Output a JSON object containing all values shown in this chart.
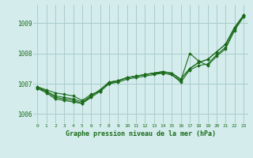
{
  "title": "Graphe pression niveau de la mer (hPa)",
  "background_color": "#d4ecec",
  "grid_color": "#aacccc",
  "line_color": "#1a6b1a",
  "marker_color": "#1a6b1a",
  "xlim": [
    -0.5,
    23.5
  ],
  "ylim": [
    1005.7,
    1009.6
  ],
  "yticks": [
    1006,
    1007,
    1008,
    1009
  ],
  "xtick_labels": [
    "0",
    "1",
    "2",
    "3",
    "4",
    "5",
    "6",
    "7",
    "8",
    "9",
    "10",
    "11",
    "12",
    "13",
    "14",
    "15",
    "16",
    "17",
    "18",
    "19",
    "20",
    "21",
    "22",
    "23"
  ],
  "series": [
    [
      1006.9,
      1006.8,
      1006.7,
      1006.65,
      1006.6,
      1006.45,
      1006.65,
      1006.75,
      1007.0,
      1007.05,
      1007.15,
      1007.2,
      1007.25,
      1007.3,
      1007.35,
      1007.3,
      1007.05,
      1007.45,
      1007.6,
      1007.65,
      1007.95,
      1008.2,
      1008.8,
      1009.2
    ],
    [
      1006.9,
      1006.75,
      1006.6,
      1006.55,
      1006.5,
      1006.4,
      1006.6,
      1006.8,
      1007.05,
      1007.1,
      1007.2,
      1007.25,
      1007.3,
      1007.35,
      1007.4,
      1007.35,
      1007.15,
      1007.5,
      1007.7,
      1007.8,
      1008.05,
      1008.3,
      1008.85,
      1009.25
    ],
    [
      1006.85,
      1006.75,
      1006.55,
      1006.5,
      1006.45,
      1006.35,
      1006.55,
      1006.75,
      1007.0,
      1007.1,
      1007.2,
      1007.25,
      1007.3,
      1007.35,
      1007.35,
      1007.3,
      1007.1,
      1008.0,
      1007.75,
      1007.6,
      1007.9,
      1008.15,
      1008.75,
      1009.2
    ],
    [
      1006.85,
      1006.7,
      1006.5,
      1006.45,
      1006.4,
      1006.35,
      1006.6,
      1006.8,
      1007.05,
      1007.1,
      1007.2,
      1007.25,
      1007.3,
      1007.35,
      1007.4,
      1007.35,
      1007.15,
      1007.5,
      1007.7,
      1007.8,
      1008.05,
      1008.3,
      1008.85,
      1009.25
    ]
  ]
}
